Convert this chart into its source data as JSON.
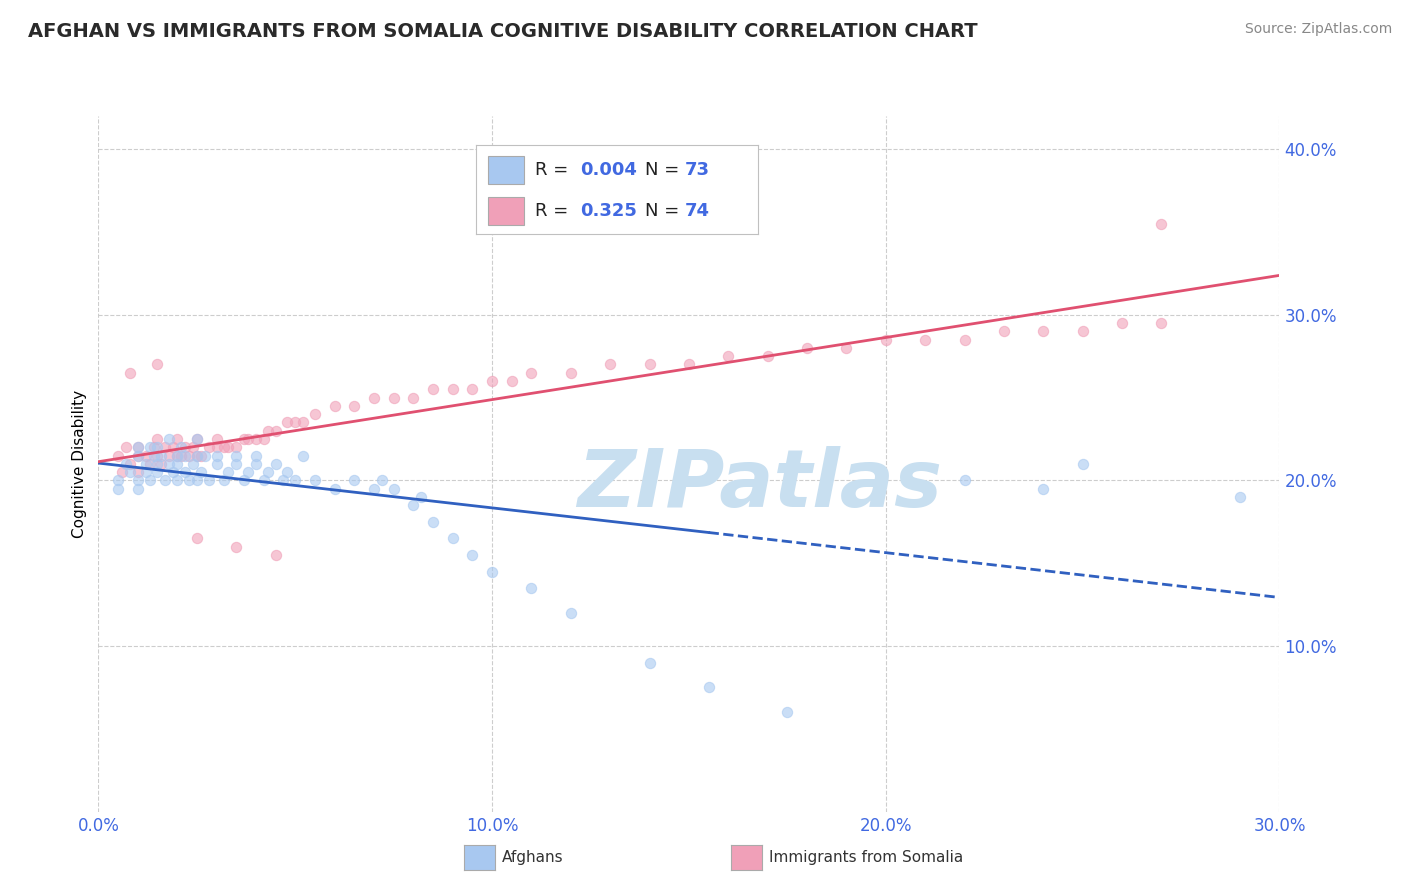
{
  "title": "AFGHAN VS IMMIGRANTS FROM SOMALIA COGNITIVE DISABILITY CORRELATION CHART",
  "source": "Source: ZipAtlas.com",
  "ylabel": "Cognitive Disability",
  "xlim": [
    0.0,
    0.3
  ],
  "ylim": [
    0.0,
    0.42
  ],
  "xticklabels": [
    "0.0%",
    "10.0%",
    "20.0%",
    "30.0%"
  ],
  "xtickvals": [
    0.0,
    0.1,
    0.2,
    0.3
  ],
  "yticklabels": [
    "10.0%",
    "20.0%",
    "30.0%",
    "40.0%"
  ],
  "ytickvals": [
    0.1,
    0.2,
    0.3,
    0.4
  ],
  "color_afghan": "#a8c8f0",
  "color_somalia": "#f0a0b8",
  "color_line_afghan": "#3060c0",
  "color_line_somalia": "#e05070",
  "color_tick": "#4169E1",
  "watermark_text": "ZIPatlas",
  "watermark_color": "#c8dff0",
  "background_color": "#ffffff",
  "title_fontsize": 14,
  "axis_label_fontsize": 11,
  "tick_fontsize": 12,
  "scatter_size": 55,
  "scatter_alpha": 0.6,
  "legend_R1": "0.004",
  "legend_N1": "73",
  "legend_R2": "0.325",
  "legend_N2": "74",
  "afghans_x": [
    0.005,
    0.005,
    0.007,
    0.008,
    0.01,
    0.01,
    0.01,
    0.01,
    0.012,
    0.012,
    0.013,
    0.013,
    0.014,
    0.015,
    0.015,
    0.015,
    0.016,
    0.017,
    0.018,
    0.018,
    0.019,
    0.02,
    0.02,
    0.02,
    0.021,
    0.022,
    0.022,
    0.023,
    0.024,
    0.025,
    0.025,
    0.025,
    0.026,
    0.027,
    0.028,
    0.03,
    0.03,
    0.032,
    0.033,
    0.035,
    0.035,
    0.037,
    0.038,
    0.04,
    0.04,
    0.042,
    0.043,
    0.045,
    0.047,
    0.048,
    0.05,
    0.052,
    0.055,
    0.06,
    0.065,
    0.07,
    0.072,
    0.075,
    0.08,
    0.082,
    0.085,
    0.09,
    0.095,
    0.1,
    0.11,
    0.12,
    0.14,
    0.155,
    0.175,
    0.22,
    0.24,
    0.25,
    0.29
  ],
  "afghans_y": [
    0.2,
    0.195,
    0.21,
    0.205,
    0.215,
    0.2,
    0.195,
    0.22,
    0.21,
    0.205,
    0.22,
    0.2,
    0.215,
    0.21,
    0.205,
    0.22,
    0.215,
    0.2,
    0.21,
    0.225,
    0.205,
    0.215,
    0.2,
    0.21,
    0.22,
    0.205,
    0.215,
    0.2,
    0.21,
    0.215,
    0.2,
    0.225,
    0.205,
    0.215,
    0.2,
    0.21,
    0.215,
    0.2,
    0.205,
    0.21,
    0.215,
    0.2,
    0.205,
    0.21,
    0.215,
    0.2,
    0.205,
    0.21,
    0.2,
    0.205,
    0.2,
    0.215,
    0.2,
    0.195,
    0.2,
    0.195,
    0.2,
    0.195,
    0.185,
    0.19,
    0.175,
    0.165,
    0.155,
    0.145,
    0.135,
    0.12,
    0.09,
    0.075,
    0.06,
    0.2,
    0.195,
    0.21,
    0.19
  ],
  "somalia_x": [
    0.005,
    0.006,
    0.007,
    0.008,
    0.01,
    0.01,
    0.01,
    0.012,
    0.013,
    0.014,
    0.015,
    0.015,
    0.016,
    0.017,
    0.018,
    0.019,
    0.02,
    0.02,
    0.021,
    0.022,
    0.023,
    0.024,
    0.025,
    0.025,
    0.026,
    0.028,
    0.03,
    0.03,
    0.032,
    0.033,
    0.035,
    0.037,
    0.038,
    0.04,
    0.042,
    0.043,
    0.045,
    0.048,
    0.05,
    0.052,
    0.055,
    0.06,
    0.065,
    0.07,
    0.075,
    0.08,
    0.085,
    0.09,
    0.095,
    0.1,
    0.105,
    0.11,
    0.12,
    0.13,
    0.14,
    0.15,
    0.16,
    0.17,
    0.18,
    0.19,
    0.2,
    0.21,
    0.22,
    0.23,
    0.24,
    0.25,
    0.26,
    0.27,
    0.008,
    0.015,
    0.025,
    0.035,
    0.045,
    0.27
  ],
  "somalia_y": [
    0.215,
    0.205,
    0.22,
    0.21,
    0.215,
    0.205,
    0.22,
    0.215,
    0.21,
    0.22,
    0.215,
    0.225,
    0.21,
    0.22,
    0.215,
    0.22,
    0.215,
    0.225,
    0.215,
    0.22,
    0.215,
    0.22,
    0.215,
    0.225,
    0.215,
    0.22,
    0.22,
    0.225,
    0.22,
    0.22,
    0.22,
    0.225,
    0.225,
    0.225,
    0.225,
    0.23,
    0.23,
    0.235,
    0.235,
    0.235,
    0.24,
    0.245,
    0.245,
    0.25,
    0.25,
    0.25,
    0.255,
    0.255,
    0.255,
    0.26,
    0.26,
    0.265,
    0.265,
    0.27,
    0.27,
    0.27,
    0.275,
    0.275,
    0.28,
    0.28,
    0.285,
    0.285,
    0.285,
    0.29,
    0.29,
    0.29,
    0.295,
    0.295,
    0.265,
    0.27,
    0.165,
    0.16,
    0.155,
    0.355
  ]
}
